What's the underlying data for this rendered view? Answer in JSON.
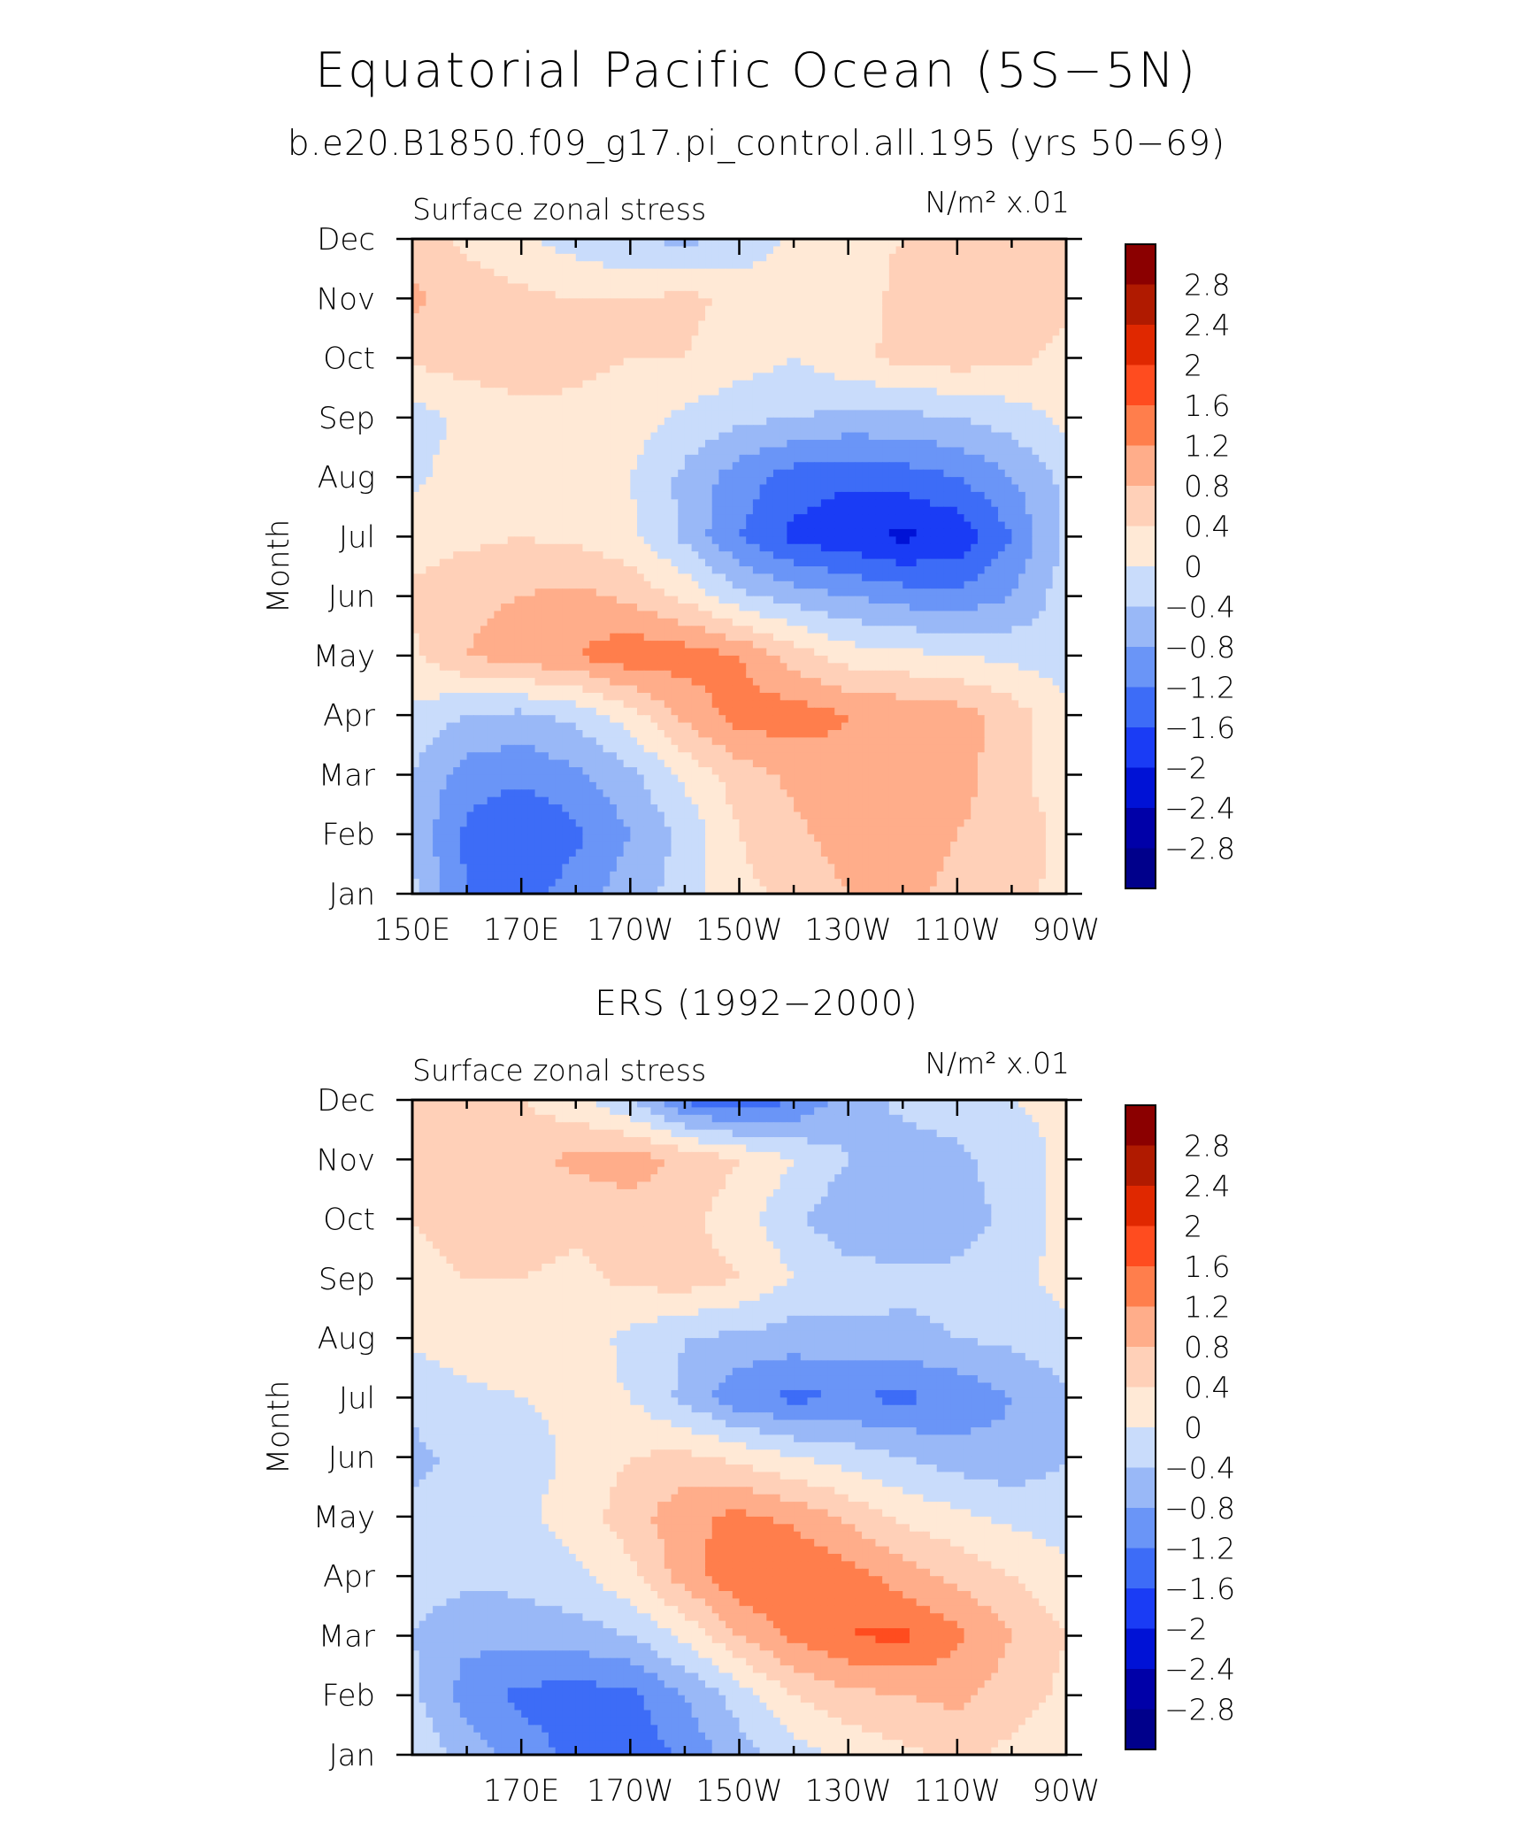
{
  "title": "Equatorial Pacific Ocean (5S−5N)",
  "subtitle": "b.e20.B1850.f09_g17.pi_control.all.195 (yrs 50−69)",
  "chart_data": [
    {
      "type": "heatmap",
      "panel_title": "",
      "left_string": "Surface zonal stress",
      "right_string": "N/m² x.01",
      "ylabel": "Month",
      "xlabel": "",
      "x_tick_labels": [
        "150E",
        "170E",
        "170W",
        "150W",
        "130W",
        "110W",
        "90W"
      ],
      "y_tick_labels": [
        "Jan",
        "Feb",
        "Mar",
        "Apr",
        "May",
        "Jun",
        "Jul",
        "Aug",
        "Sep",
        "Oct",
        "Nov",
        "Dec"
      ],
      "x_range_deg_east": [
        150,
        270
      ],
      "y_range_month": [
        1,
        12
      ],
      "contour_levels": [
        -2.8,
        -2.4,
        -2,
        -1.6,
        -1.2,
        -0.8,
        -0.4,
        0,
        0.4,
        0.8,
        1.2,
        1.6,
        2,
        2.4,
        2.8
      ],
      "colorbar_labels": [
        "2.8",
        "2.4",
        "2",
        "1.6",
        "1.2",
        "0.8",
        "0.4",
        "0",
        "−0.4",
        "−0.8",
        "−1.2",
        "−1.6",
        "−2",
        "−2.4",
        "−2.8"
      ],
      "lon": [
        150,
        160,
        170,
        180,
        190,
        200,
        210,
        220,
        230,
        240,
        250,
        260,
        270
      ],
      "month": [
        1,
        2,
        3,
        4,
        5,
        6,
        7,
        8,
        9,
        10,
        11,
        12
      ],
      "values": [
        [
          -0.3,
          -1.2,
          -1.4,
          -1.0,
          -0.6,
          -0.2,
          0.3,
          0.5,
          0.8,
          0.9,
          0.7,
          0.5,
          0.3
        ],
        [
          -0.5,
          -1.3,
          -1.6,
          -1.3,
          -0.8,
          -0.3,
          0.4,
          0.7,
          1.0,
          1.0,
          0.8,
          0.6,
          0.3
        ],
        [
          -0.4,
          -1.0,
          -1.1,
          -0.9,
          -0.5,
          0.1,
          0.6,
          0.9,
          1.1,
          0.9,
          1.0,
          0.5,
          0.2
        ],
        [
          -0.1,
          -0.4,
          -0.5,
          -0.3,
          0.2,
          0.9,
          1.4,
          1.4,
          1.2,
          1.1,
          1.0,
          0.6,
          0.1
        ],
        [
          0.3,
          0.8,
          1.0,
          1.2,
          1.5,
          1.4,
          1.2,
          0.6,
          0.2,
          0.1,
          0.0,
          -0.1,
          -0.2
        ],
        [
          0.5,
          0.7,
          0.8,
          0.9,
          0.7,
          0.3,
          -0.3,
          -0.6,
          -0.8,
          -1.0,
          -1.1,
          -0.8,
          -0.2
        ],
        [
          0.2,
          0.3,
          0.4,
          0.3,
          0.1,
          -0.5,
          -1.2,
          -1.7,
          -1.9,
          -2.1,
          -1.9,
          -1.2,
          -0.3
        ],
        [
          -0.1,
          0.2,
          0.3,
          0.2,
          0.0,
          -0.5,
          -1.0,
          -1.4,
          -1.5,
          -1.4,
          -1.2,
          -0.8,
          -0.3
        ],
        [
          -0.2,
          0.1,
          0.3,
          0.3,
          0.2,
          -0.1,
          -0.3,
          -0.4,
          -0.5,
          -0.5,
          -0.4,
          -0.2,
          0.1
        ],
        [
          0.5,
          0.6,
          0.6,
          0.5,
          0.4,
          0.4,
          0.2,
          0.0,
          0.3,
          0.5,
          0.6,
          0.5,
          0.3
        ],
        [
          0.9,
          0.6,
          0.5,
          0.4,
          0.4,
          0.5,
          0.3,
          0.1,
          0.2,
          0.5,
          0.6,
          0.6,
          0.5
        ],
        [
          0.6,
          0.3,
          0.1,
          -0.2,
          -0.4,
          -0.5,
          -0.3,
          0.1,
          0.3,
          0.4,
          0.5,
          0.5,
          0.4
        ]
      ]
    },
    {
      "type": "heatmap",
      "panel_title": "ERS (1992−2000)",
      "left_string": "Surface zonal stress",
      "right_string": "N/m² x.01",
      "ylabel": "Month",
      "xlabel": "",
      "x_tick_labels": [
        "170E",
        "170W",
        "150W",
        "130W",
        "110W",
        "90W"
      ],
      "y_tick_labels": [
        "Jan",
        "Feb",
        "Mar",
        "Apr",
        "May",
        "Jun",
        "Jul",
        "Aug",
        "Sep",
        "Oct",
        "Nov",
        "Dec"
      ],
      "x_range_deg_east": [
        150,
        270
      ],
      "y_range_month": [
        1,
        12
      ],
      "contour_levels": [
        -2.8,
        -2.4,
        -2,
        -1.6,
        -1.2,
        -0.8,
        -0.4,
        0,
        0.4,
        0.8,
        1.2,
        1.6,
        2,
        2.4,
        2.8
      ],
      "colorbar_labels": [
        "2.8",
        "2.4",
        "2",
        "1.6",
        "1.2",
        "0.8",
        "0.4",
        "0",
        "−0.4",
        "−0.8",
        "−1.2",
        "−1.6",
        "−2",
        "−2.4",
        "−2.8"
      ],
      "lon": [
        150,
        160,
        170,
        180,
        190,
        200,
        210,
        220,
        230,
        240,
        250,
        260,
        270
      ],
      "month": [
        1,
        2,
        3,
        4,
        5,
        6,
        7,
        8,
        9,
        10,
        11,
        12
      ],
      "values": [
        [
          0.0,
          -0.6,
          -1.0,
          -1.3,
          -1.5,
          -1.1,
          -0.6,
          -0.2,
          0.1,
          0.3,
          0.5,
          0.3,
          0.1
        ],
        [
          -0.3,
          -1.0,
          -1.3,
          -1.4,
          -1.3,
          -0.8,
          -0.2,
          0.4,
          0.7,
          0.8,
          0.9,
          0.6,
          0.3
        ],
        [
          -0.4,
          -0.7,
          -0.6,
          -0.6,
          -0.4,
          0.1,
          0.8,
          1.3,
          1.6,
          1.7,
          1.3,
          0.8,
          0.4
        ],
        [
          -0.2,
          -0.3,
          -0.3,
          -0.1,
          0.3,
          1.0,
          1.5,
          1.6,
          1.4,
          1.0,
          0.7,
          0.4,
          0.1
        ],
        [
          -0.3,
          -0.2,
          -0.1,
          0.2,
          0.6,
          1.1,
          1.3,
          1.1,
          0.7,
          0.3,
          0.1,
          -0.1,
          -0.2
        ],
        [
          -0.5,
          -0.3,
          -0.2,
          0.1,
          0.4,
          0.5,
          0.3,
          0.0,
          -0.2,
          -0.4,
          -0.6,
          -0.7,
          -0.4
        ],
        [
          -0.3,
          -0.1,
          0.0,
          0.1,
          0.0,
          -0.5,
          -1.1,
          -1.3,
          -1.2,
          -1.3,
          -1.1,
          -0.8,
          -0.5
        ],
        [
          0.1,
          0.2,
          0.3,
          0.2,
          -0.1,
          -0.4,
          -0.5,
          -0.6,
          -0.5,
          -0.5,
          -0.4,
          -0.3,
          -0.1
        ],
        [
          0.3,
          0.4,
          0.4,
          0.3,
          0.5,
          0.6,
          0.4,
          0.0,
          -0.2,
          -0.3,
          -0.3,
          -0.1,
          0.1
        ],
        [
          0.4,
          0.5,
          0.6,
          0.5,
          0.6,
          0.5,
          0.2,
          -0.3,
          -0.7,
          -0.8,
          -0.6,
          -0.3,
          0.2
        ],
        [
          0.5,
          0.6,
          0.7,
          0.9,
          1.0,
          0.7,
          0.4,
          0.0,
          -0.4,
          -0.6,
          -0.5,
          -0.2,
          0.1
        ],
        [
          0.6,
          0.5,
          0.4,
          0.1,
          -0.4,
          -1.3,
          -1.5,
          -1.2,
          -0.6,
          -0.3,
          -0.2,
          0.0,
          0.1
        ]
      ]
    }
  ],
  "colors": {
    "levels_fill": [
      "#00008b",
      "#0000a8",
      "#0012d6",
      "#1a3cf5",
      "#3d6cf7",
      "#6a95f7",
      "#99b8f7",
      "#c9dcfb",
      "#ffe9d6",
      "#ffd0b8",
      "#ffad8a",
      "#ff7e4c",
      "#ff4c1f",
      "#e02800",
      "#b01a00",
      "#8b0000"
    ],
    "axis": "#000000",
    "background": "#ffffff"
  }
}
